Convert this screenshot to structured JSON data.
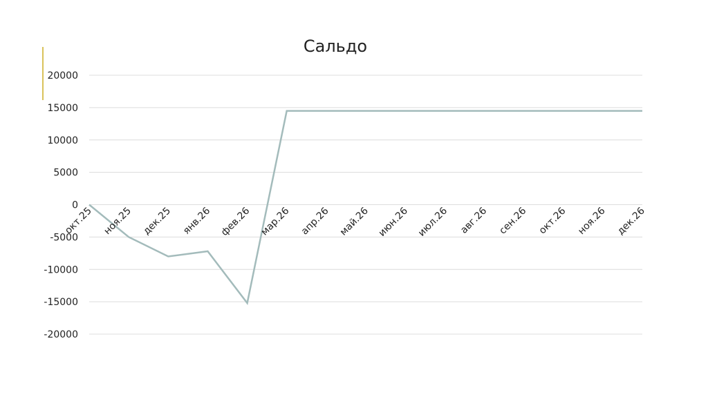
{
  "chart_data": {
    "type": "line",
    "title": "Сальдо",
    "categories": [
      "окт.25",
      "ноя.25",
      "дек.25",
      "янв.26",
      "фев.26",
      "мар.26",
      "апр.26",
      "май.26",
      "июн.26",
      "июл.26",
      "авг.26",
      "сен.26",
      "окт.26",
      "ноя.26",
      "дек.26"
    ],
    "values": [
      0,
      -5000,
      -8000,
      -7200,
      -15200,
      14500,
      14500,
      14500,
      14500,
      14500,
      14500,
      14500,
      14500,
      14500,
      14500
    ],
    "color": "#a3bbbb",
    "ylim": [
      -20000,
      20000
    ],
    "yticks": [
      -20000,
      -15000,
      -10000,
      -5000,
      0,
      5000,
      10000,
      15000,
      20000
    ],
    "grid": true
  }
}
